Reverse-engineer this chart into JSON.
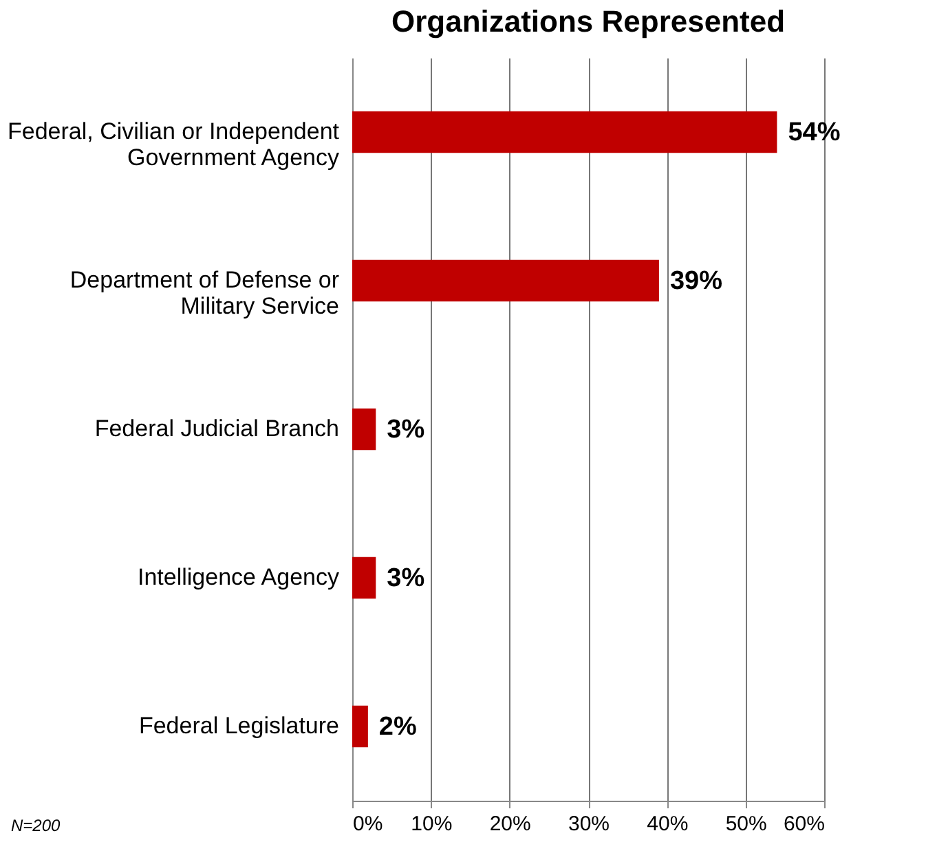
{
  "chart_data": {
    "type": "bar",
    "orientation": "horizontal",
    "title": "Organizations Represented",
    "categories": [
      "Federal, Civilian or Independent Government Agency",
      "Department of Defense or Military Service",
      "Federal Judicial Branch",
      "Intelligence Agency",
      "Federal Legislature"
    ],
    "values": [
      54,
      39,
      3,
      3,
      2
    ],
    "value_labels": [
      "54%",
      "39%",
      "3%",
      "3%",
      "2%"
    ],
    "color": "#c00000",
    "xlim": [
      0,
      60
    ],
    "xticks": [
      {
        "value": 0,
        "label": "0%"
      },
      {
        "value": 10,
        "label": "10%"
      },
      {
        "value": 20,
        "label": "20%"
      },
      {
        "value": 30,
        "label": "30%"
      },
      {
        "value": 40,
        "label": "40%"
      },
      {
        "value": 50,
        "label": "50%"
      },
      {
        "value": 60,
        "label": "60%"
      }
    ],
    "grid": "x",
    "annotations": [
      "N=200"
    ]
  }
}
